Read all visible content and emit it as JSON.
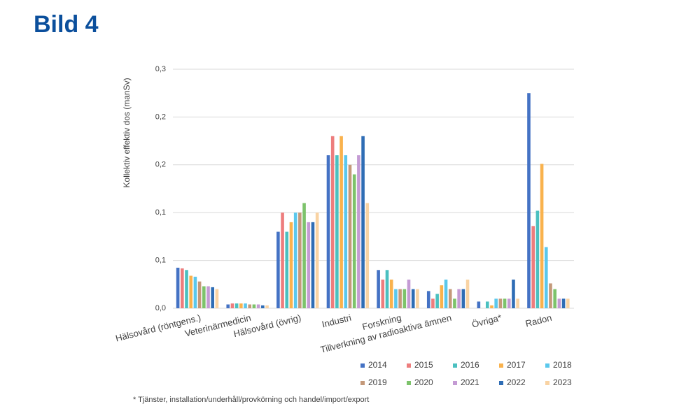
{
  "header": {
    "title": "Bild 4"
  },
  "chart_data": {
    "type": "bar",
    "y_label": "Kollektiv effektiv dos (manSv)",
    "footnote": "* Tjänster, installation/underhåll/provkörning och handel/import/export",
    "categories": [
      "Hälsovård (röntgens.)",
      "Veterinärmedicin",
      "Hälsovård (övrig)",
      "Industri",
      "Forskning",
      "Tillverkning av radioaktiva ämnen",
      "Övriga*",
      "Radon"
    ],
    "ylim": [
      0,
      0.25
    ],
    "yticks": [
      {
        "value": 0,
        "label": "0,0"
      },
      {
        "value": 0.05,
        "label": "0,1"
      },
      {
        "value": 0.1,
        "label": "0,1"
      },
      {
        "value": 0.15,
        "label": "0,2"
      },
      {
        "value": 0.2,
        "label": "0,2"
      },
      {
        "value": 0.25,
        "label": "0,3"
      }
    ],
    "grid": true,
    "series": [
      {
        "name": "2014",
        "color": "#4472c4",
        "values": [
          0.0424,
          0.004,
          0.08,
          0.16,
          0.04,
          0.018,
          0.007,
          0.225
        ]
      },
      {
        "name": "2015",
        "color": "#ed7d7d",
        "values": [
          0.0417,
          0.005,
          0.1,
          0.18,
          0.03,
          0.01,
          0,
          0.086
        ]
      },
      {
        "name": "2016",
        "color": "#4bc0c0",
        "values": [
          0.04,
          0.005,
          0.08,
          0.16,
          0.04,
          0.015,
          0.007,
          0.102
        ]
      },
      {
        "name": "2017",
        "color": "#f9b24d",
        "values": [
          0.034,
          0.005,
          0.09,
          0.18,
          0.03,
          0.024,
          0.003,
          0.151
        ]
      },
      {
        "name": "2018",
        "color": "#5bc8ec",
        "values": [
          0.033,
          0.005,
          0.1,
          0.16,
          0.02,
          0.03,
          0.01,
          0.064
        ]
      },
      {
        "name": "2019",
        "color": "#c4997a",
        "values": [
          0.028,
          0.004,
          0.1,
          0.15,
          0.02,
          0.02,
          0.01,
          0.026
        ]
      },
      {
        "name": "2020",
        "color": "#7dc36b",
        "values": [
          0.023,
          0.004,
          0.11,
          0.14,
          0.02,
          0.01,
          0.01,
          0.02
        ]
      },
      {
        "name": "2021",
        "color": "#c49bd4",
        "values": [
          0.023,
          0.004,
          0.09,
          0.16,
          0.03,
          0.02,
          0.01,
          0.01
        ]
      },
      {
        "name": "2022",
        "color": "#2f6db5",
        "values": [
          0.022,
          0.003,
          0.09,
          0.18,
          0.02,
          0.02,
          0.03,
          0.01
        ]
      },
      {
        "name": "2023",
        "color": "#f9d3a3",
        "values": [
          0.02,
          0.003,
          0.1,
          0.11,
          0.02,
          0.03,
          0.01,
          0.01
        ]
      }
    ]
  }
}
